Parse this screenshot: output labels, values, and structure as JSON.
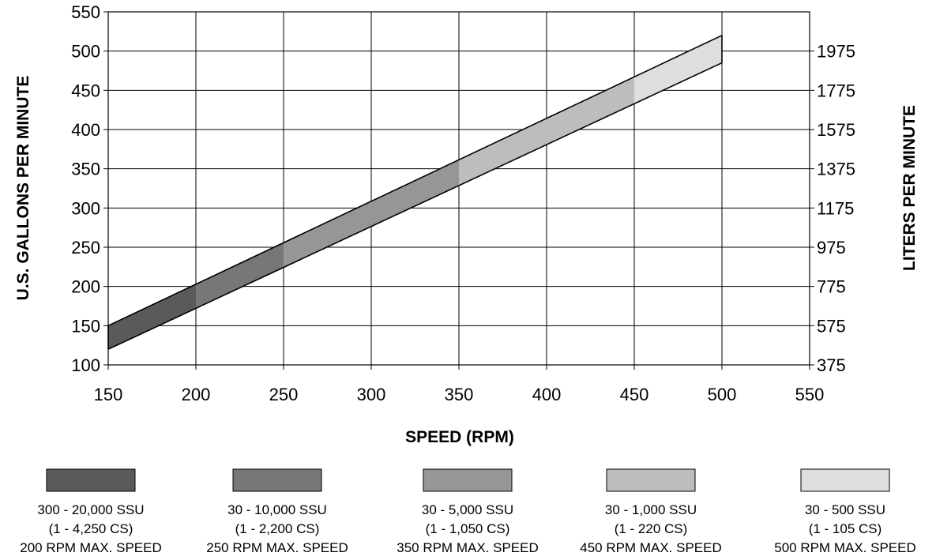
{
  "chart_data": {
    "type": "area",
    "xlabel": "SPEED (RPM)",
    "ylabel": "U.S. GALLONS PER MINUTE",
    "y2label": "LITERS PER MINUTE",
    "xlim": [
      150,
      550
    ],
    "ylim": [
      100,
      550
    ],
    "x_ticks": [
      "150",
      "200",
      "250",
      "300",
      "350",
      "400",
      "450",
      "500",
      "550"
    ],
    "y_ticks": [
      "100",
      "150",
      "200",
      "250",
      "300",
      "350",
      "400",
      "450",
      "500",
      "550"
    ],
    "y2_ticks": [
      {
        "label": "375",
        "gpm": 100
      },
      {
        "label": "575",
        "gpm": 150
      },
      {
        "label": "775",
        "gpm": 200
      },
      {
        "label": "975",
        "gpm": 250
      },
      {
        "label": "1175",
        "gpm": 300
      },
      {
        "label": "1375",
        "gpm": 350
      },
      {
        "label": "1575",
        "gpm": 400
      },
      {
        "label": "1775",
        "gpm": 450
      },
      {
        "label": "1975",
        "gpm": 500
      }
    ],
    "grid": true,
    "upper_line": {
      "x": [
        150,
        500
      ],
      "y": [
        150,
        520
      ]
    },
    "lower_line": {
      "x": [
        150,
        500
      ],
      "y": [
        120,
        485
      ]
    },
    "bands": [
      {
        "x_start": 150,
        "x_end": 200,
        "color": "#5a5a5a"
      },
      {
        "x_start": 200,
        "x_end": 250,
        "color": "#777777"
      },
      {
        "x_start": 250,
        "x_end": 350,
        "color": "#969696"
      },
      {
        "x_start": 350,
        "x_end": 450,
        "color": "#bdbdbd"
      },
      {
        "x_start": 450,
        "x_end": 500,
        "color": "#dedede"
      }
    ],
    "legend": [
      {
        "color": "#5a5a5a",
        "line1": "300 - 20,000 SSU",
        "line2": "(1 - 4,250 CS)",
        "line3": "200 RPM MAX. SPEED"
      },
      {
        "color": "#777777",
        "line1": "30 - 10,000 SSU",
        "line2": "(1 - 2,200 CS)",
        "line3": "250 RPM MAX. SPEED"
      },
      {
        "color": "#969696",
        "line1": "30 - 5,000 SSU",
        "line2": "(1 - 1,050 CS)",
        "line3": "350 RPM MAX. SPEED"
      },
      {
        "color": "#bdbdbd",
        "line1": "30 - 1,000 SSU",
        "line2": "(1 - 220 CS)",
        "line3": "450 RPM MAX. SPEED"
      },
      {
        "color": "#dedede",
        "line1": "30 - 500 SSU",
        "line2": "(1 - 105 CS)",
        "line3": "500 RPM MAX. SPEED"
      }
    ],
    "legend_placement": "bottom"
  }
}
